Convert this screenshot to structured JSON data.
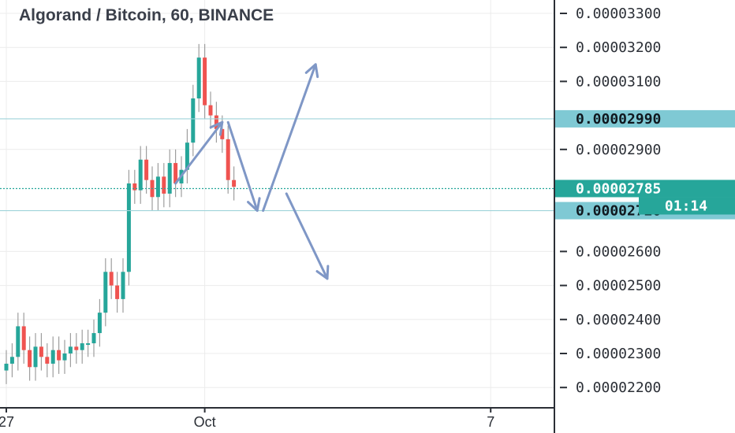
{
  "header": {
    "title": "Algorand / Bitcoin, 60, BINANCE"
  },
  "colors": {
    "up": "#26a69a",
    "down": "#ef5350",
    "wick": "#9e9e9e",
    "level_line": "#9fd4da",
    "level_label_bg": "#7fc9d4",
    "price_label_bg": "#26a69a",
    "arrow": "#7f97c6",
    "grid": "#ececec",
    "axis": "#2b2f36"
  },
  "chart_data": {
    "type": "candlestick",
    "title": "Algorand / Bitcoin, 60, BINANCE",
    "y_axis": {
      "position": "right",
      "range": [
        2.14e-05,
        3.34e-05
      ],
      "ticks": [
        "0.00002200",
        "0.00002300",
        "0.00002400",
        "0.00002500",
        "0.00002600",
        "0.00002900",
        "0.00003100",
        "0.00003200",
        "0.00003300"
      ]
    },
    "x_axis": {
      "ticks": [
        "27",
        "Oct",
        "7"
      ]
    },
    "grid": true,
    "price_levels": [
      {
        "label": "0.00002990",
        "value": 2.99e-05,
        "style": "level"
      },
      {
        "label": "0.00002785",
        "value": 2.785e-05,
        "style": "last-price"
      },
      {
        "label": "0.00002720",
        "value": 2.72e-05,
        "style": "level"
      }
    ],
    "countdown": "01:14",
    "series": [
      {
        "values": [
          2.27e-05,
          2.29e-05,
          2.38e-05,
          2.31e-05,
          2.26e-05,
          2.32e-05,
          2.29e-05,
          2.27e-05,
          2.31e-05,
          2.28e-05,
          2.3e-05,
          2.32e-05,
          2.31e-05,
          2.33e-05,
          2.33e-05,
          2.36e-05,
          2.42e-05,
          2.54e-05,
          2.5e-05,
          2.46e-05,
          2.54e-05,
          2.8e-05,
          2.78e-05,
          2.87e-05,
          2.81e-05,
          2.76e-05,
          2.82e-05,
          2.77e-05,
          2.86e-05,
          2.8e-05,
          2.84e-05,
          2.92e-05,
          3.05e-05,
          3.17e-05,
          3.03e-05,
          3e-05,
          2.96e-05,
          2.93e-05,
          2.81e-05,
          2.79e-05
        ]
      }
    ],
    "annotations": [
      {
        "type": "arrow",
        "from": [
          29,
          2.8e-05
        ],
        "to": [
          37,
          2.98e-05
        ]
      },
      {
        "type": "arrow",
        "from": [
          38,
          2.98e-05
        ],
        "to": [
          43,
          2.72e-05
        ]
      },
      {
        "type": "arrow",
        "from": [
          44,
          2.72e-05
        ],
        "to": [
          53,
          3.15e-05
        ]
      },
      {
        "type": "arrow",
        "from": [
          48,
          2.77e-05
        ],
        "to": [
          55,
          2.52e-05
        ]
      }
    ]
  }
}
